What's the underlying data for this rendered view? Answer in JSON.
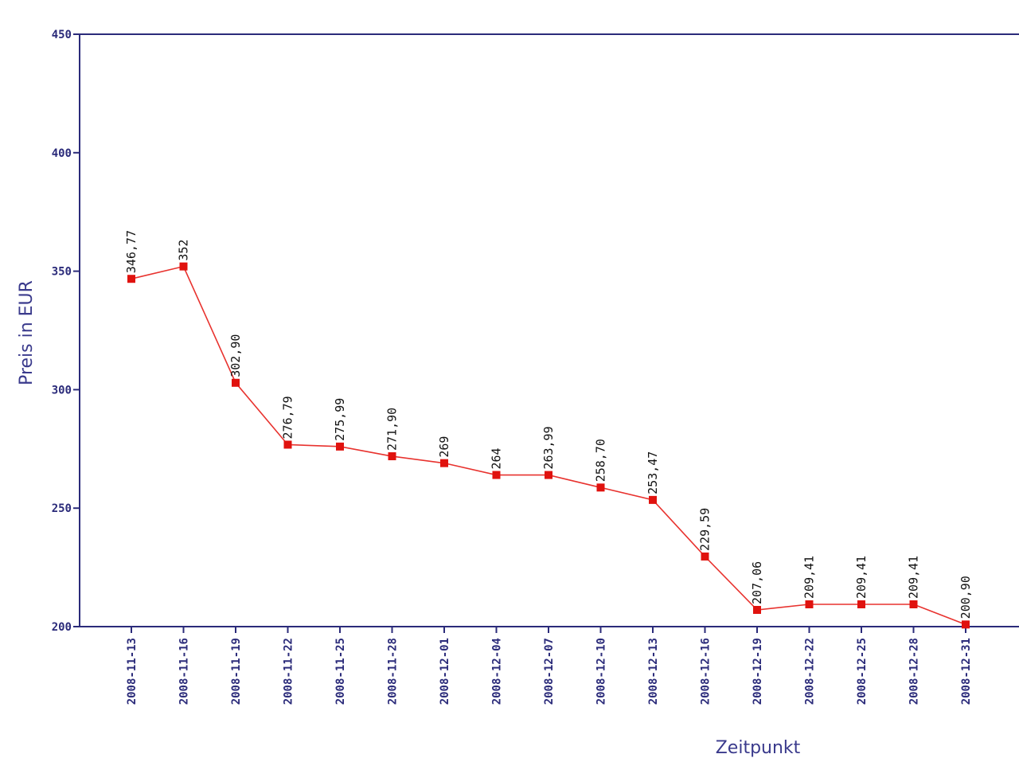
{
  "chart_data": {
    "type": "line",
    "title": "",
    "xlabel": "Zeitpunkt",
    "ylabel": "Preis in EUR",
    "ylim": [
      200,
      450
    ],
    "yticks": [
      "450",
      "400",
      "350",
      "300",
      "250",
      "200"
    ],
    "grid": false,
    "x": [
      "2008-11-13",
      "2008-11-16",
      "2008-11-19",
      "2008-11-22",
      "2008-11-25",
      "2008-11-28",
      "2008-12-01",
      "2008-12-04",
      "2008-12-07",
      "2008-12-10",
      "2008-12-13",
      "2008-12-16",
      "2008-12-19",
      "2008-12-22",
      "2008-12-25",
      "2008-12-28",
      "2008-12-31"
    ],
    "series": [
      {
        "values": [
          346.77,
          352,
          302.9,
          276.79,
          275.99,
          271.9,
          269,
          264,
          263.99,
          258.7,
          253.47,
          229.59,
          207.06,
          209.41,
          209.41,
          209.41,
          200.9
        ],
        "labels": [
          "346,77",
          "352",
          "302,90",
          "276,79",
          "275,99",
          "271,90",
          "269",
          "264",
          "263,99",
          "258,70",
          "253,47",
          "229,59",
          "207,06",
          "209,41",
          "209,41",
          "209,41",
          "200,90"
        ]
      }
    ],
    "colors": {
      "line": "#e8322e",
      "marker": "#e0120e",
      "axis": "#2b2b7a",
      "text": "#111111"
    }
  }
}
